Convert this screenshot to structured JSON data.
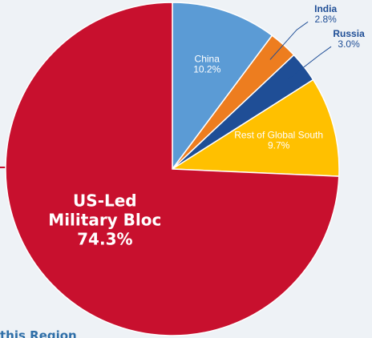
{
  "chart_data": {
    "type": "pie",
    "start_angle": "12 o'clock",
    "direction": "clockwise",
    "slices": [
      {
        "name": "China",
        "value": 10.2,
        "label": "10.2%",
        "color": "#5b9bd5",
        "label_color": "#ffffff",
        "label_position": "inside"
      },
      {
        "name": "India",
        "value": 2.8,
        "label": "2.8%",
        "color": "#ed7d1f",
        "label_color": "#1f4e96",
        "label_position": "outside"
      },
      {
        "name": "Russia",
        "value": 3.0,
        "label": "3.0%",
        "color": "#1f4e96",
        "label_color": "#1f4e96",
        "label_position": "outside"
      },
      {
        "name": "Rest of Global South",
        "value": 9.7,
        "label": "9.7%",
        "color": "#ffc000",
        "label_color": "#ffffff",
        "label_position": "inside"
      },
      {
        "name_lines": [
          "US-Led",
          "Military Bloc"
        ],
        "value": 74.3,
        "label": "74.3%",
        "color": "#c8102e",
        "label_color": "#ffffff",
        "label_position": "inside-large"
      }
    ]
  },
  "footer": {
    "text": "this Region",
    "color": "#2f6fa8"
  },
  "colors": {
    "background": "#eef2f6",
    "slice_border": "#ffffff",
    "accent_line": "#c8102e"
  }
}
